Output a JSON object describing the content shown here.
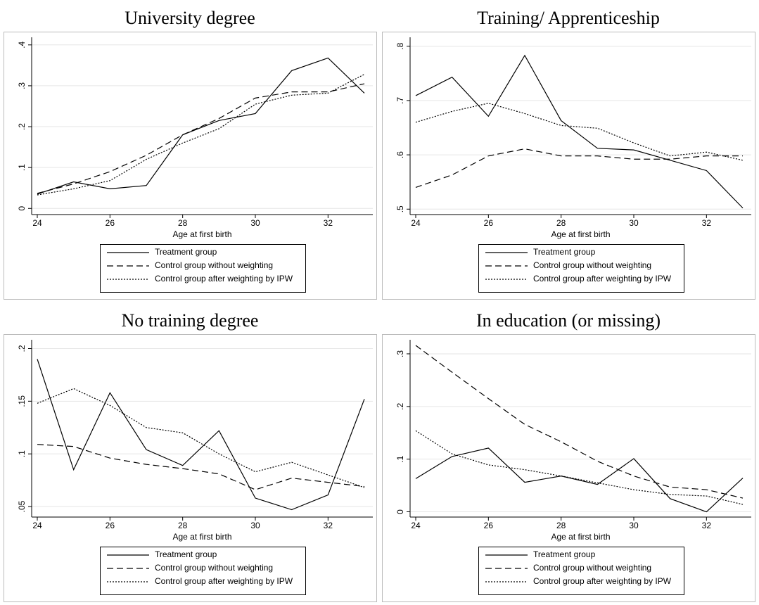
{
  "chart_data": [
    {
      "type": "line",
      "title": "University degree",
      "x_label": "Age at first birth",
      "x": [
        24,
        25,
        26,
        27,
        28,
        29,
        30,
        31,
        32,
        33
      ],
      "xlim": [
        24,
        33
      ],
      "xticks": [
        24,
        26,
        28,
        30,
        32
      ],
      "ylim": [
        -0.015,
        0.41
      ],
      "yticks": [
        0,
        {
          "value": 0.1,
          "label": ".1"
        },
        {
          "value": 0.2,
          "label": ".2"
        },
        {
          "value": 0.3,
          "label": ".3"
        },
        {
          "value": 0.4,
          "label": ".4"
        }
      ],
      "grid": true,
      "series": [
        {
          "name": "Treatment group",
          "color": "#000000",
          "dash": "solid",
          "values": [
            0.035,
            0.065,
            0.048,
            0.056,
            0.18,
            0.215,
            0.232,
            0.337,
            0.368,
            0.282
          ]
        },
        {
          "name": "Control group without weighting",
          "color": "#000000",
          "dash": "dashed",
          "values": [
            0.037,
            0.06,
            0.09,
            0.13,
            0.18,
            0.22,
            0.27,
            0.285,
            0.285,
            0.305
          ]
        },
        {
          "name": "Control group after weighting by IPW",
          "color": "#000000",
          "dash": "dotted",
          "values": [
            0.033,
            0.048,
            0.068,
            0.12,
            0.16,
            0.195,
            0.255,
            0.277,
            0.282,
            0.328
          ]
        }
      ]
    },
    {
      "type": "line",
      "title": "Training/ Apprenticeship",
      "x_label": "Age at first birth",
      "x": [
        24,
        25,
        26,
        27,
        28,
        29,
        30,
        31,
        32,
        33
      ],
      "xlim": [
        24,
        33
      ],
      "xticks": [
        24,
        26,
        28,
        30,
        32
      ],
      "ylim": [
        0.49,
        0.81
      ],
      "yticks": [
        {
          "value": 0.5,
          "label": ".5"
        },
        {
          "value": 0.6,
          "label": ".6"
        },
        {
          "value": 0.7,
          "label": ".7"
        },
        {
          "value": 0.8,
          "label": ".8"
        }
      ],
      "grid": true,
      "series": [
        {
          "name": "Treatment group",
          "color": "#000000",
          "dash": "solid",
          "values": [
            0.709,
            0.743,
            0.671,
            0.783,
            0.663,
            0.612,
            0.609,
            0.59,
            0.571,
            0.502
          ]
        },
        {
          "name": "Control group without weighting",
          "color": "#000000",
          "dash": "dashed",
          "values": [
            0.54,
            0.563,
            0.598,
            0.611,
            0.598,
            0.598,
            0.592,
            0.592,
            0.598,
            0.598
          ]
        },
        {
          "name": "Control group after weighting by IPW",
          "color": "#000000",
          "dash": "dotted",
          "values": [
            0.66,
            0.68,
            0.695,
            0.676,
            0.654,
            0.649,
            0.622,
            0.598,
            0.605,
            0.59
          ]
        }
      ]
    },
    {
      "type": "line",
      "title": "No training degree",
      "x_label": "Age at first birth",
      "x": [
        24,
        25,
        26,
        27,
        28,
        29,
        30,
        31,
        32,
        33
      ],
      "xlim": [
        24,
        33
      ],
      "xticks": [
        24,
        26,
        28,
        30,
        32
      ],
      "ylim": [
        0.04,
        0.205
      ],
      "yticks": [
        {
          "value": 0.05,
          "label": ".05"
        },
        {
          "value": 0.1,
          "label": ".1"
        },
        {
          "value": 0.15,
          "label": ".15"
        },
        {
          "value": 0.2,
          "label": ".2"
        }
      ],
      "grid": true,
      "series": [
        {
          "name": "Treatment group",
          "color": "#000000",
          "dash": "solid",
          "values": [
            0.19,
            0.085,
            0.158,
            0.104,
            0.089,
            0.122,
            0.058,
            0.047,
            0.061,
            0.152
          ]
        },
        {
          "name": "Control group without weighting",
          "color": "#000000",
          "dash": "dashed",
          "values": [
            0.109,
            0.107,
            0.096,
            0.09,
            0.086,
            0.081,
            0.066,
            0.077,
            0.073,
            0.069
          ]
        },
        {
          "name": "Control group after weighting by IPW",
          "color": "#000000",
          "dash": "dotted",
          "values": [
            0.148,
            0.162,
            0.146,
            0.125,
            0.12,
            0.1,
            0.083,
            0.092,
            0.08,
            0.068
          ]
        }
      ]
    },
    {
      "type": "line",
      "title": "In education (or missing)",
      "x_label": "Age at first birth",
      "x": [
        24,
        25,
        26,
        27,
        28,
        29,
        30,
        31,
        32,
        33
      ],
      "xlim": [
        24,
        33
      ],
      "xticks": [
        24,
        26,
        28,
        30,
        32
      ],
      "ylim": [
        -0.01,
        0.32
      ],
      "yticks": [
        0,
        {
          "value": 0.1,
          "label": ".1"
        },
        {
          "value": 0.2,
          "label": ".2"
        },
        {
          "value": 0.3,
          "label": ".3"
        }
      ],
      "grid": true,
      "series": [
        {
          "name": "Treatment group",
          "color": "#000000",
          "dash": "solid",
          "values": [
            0.063,
            0.105,
            0.121,
            0.056,
            0.068,
            0.052,
            0.101,
            0.025,
            0,
            0.064
          ]
        },
        {
          "name": "Control group without weighting",
          "color": "#000000",
          "dash": "dashed",
          "values": [
            0.316,
            0.265,
            0.215,
            0.166,
            0.133,
            0.096,
            0.068,
            0.047,
            0.042,
            0.026
          ]
        },
        {
          "name": "Control group after weighting by IPW",
          "color": "#000000",
          "dash": "dotted",
          "values": [
            0.154,
            0.11,
            0.089,
            0.08,
            0.068,
            0.055,
            0.042,
            0.033,
            0.03,
            0.014
          ]
        }
      ]
    }
  ]
}
